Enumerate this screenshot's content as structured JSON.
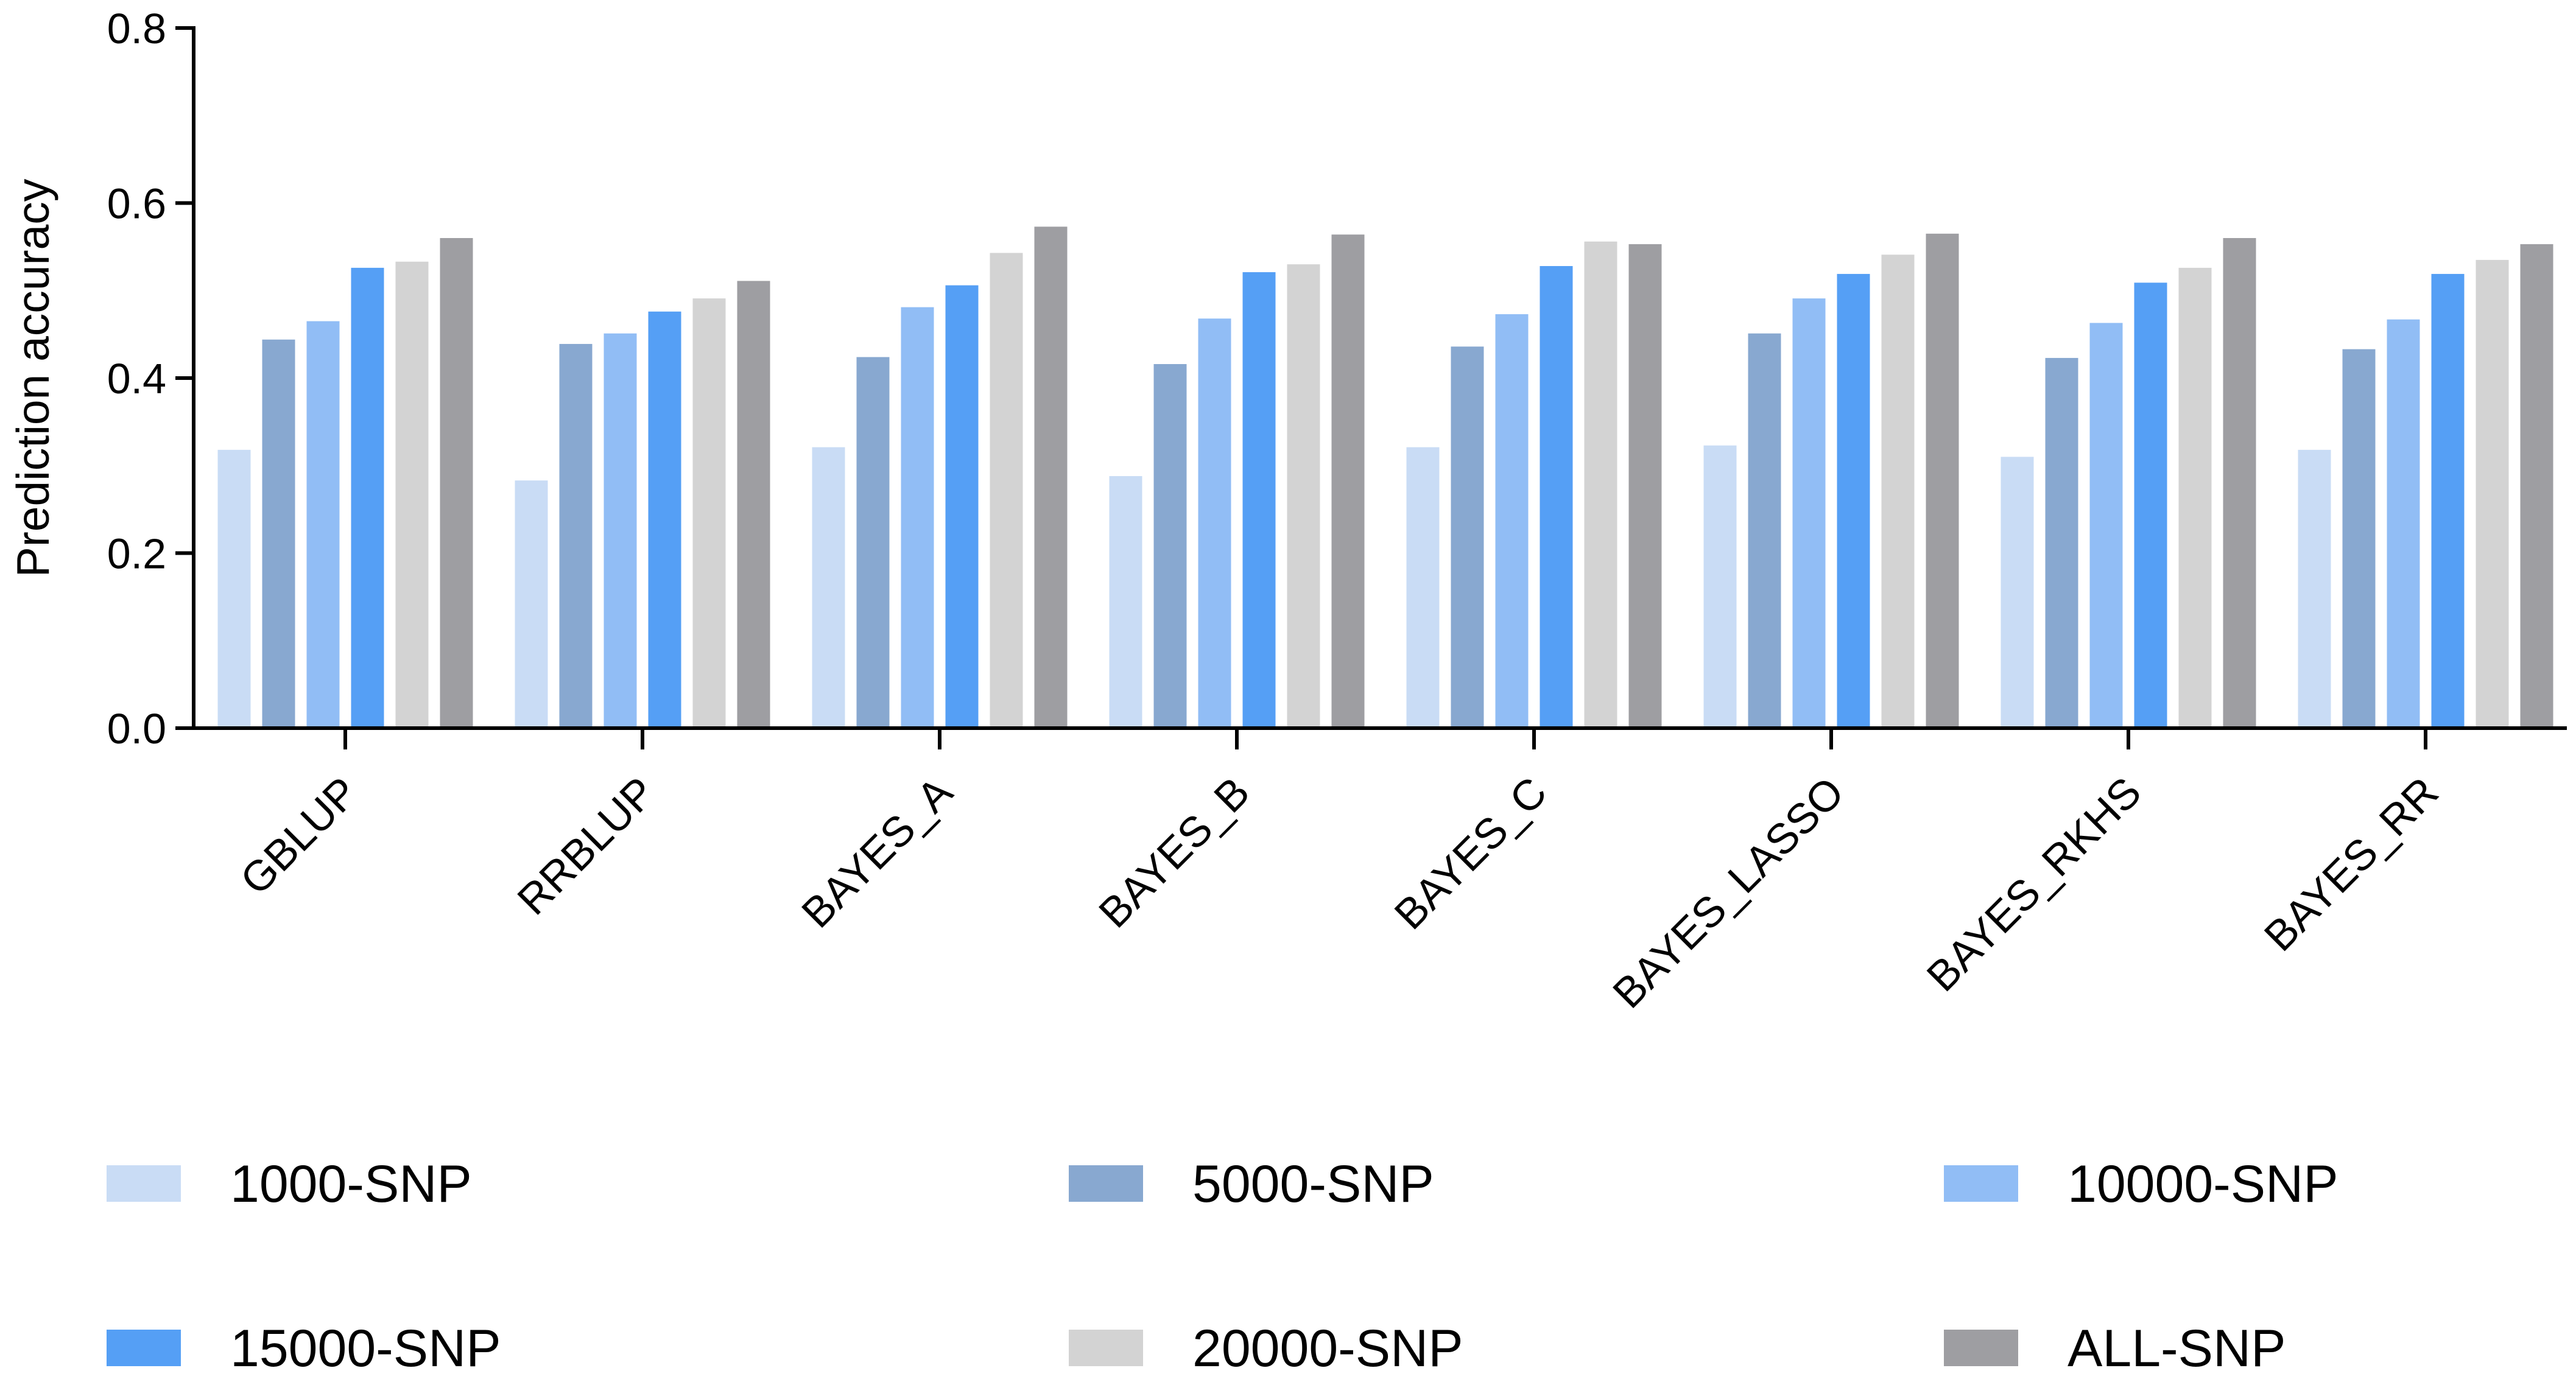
{
  "chart_data": {
    "type": "bar",
    "y_label": "Prediction accuracy",
    "categories": [
      "GBLUP",
      "RRBLUP",
      "BAYES_A",
      "BAYES_B",
      "BAYES_C",
      "BAYES_LASSO",
      "BAYES_RKHS",
      "BAYES_RR"
    ],
    "series": [
      {
        "name": "1000-SNP",
        "color": "#c9dcf5",
        "values": [
          0.318,
          0.283,
          0.321,
          0.288,
          0.321,
          0.323,
          0.31,
          0.318
        ]
      },
      {
        "name": "5000-SNP",
        "color": "#88a8d0",
        "values": [
          0.444,
          0.439,
          0.424,
          0.416,
          0.436,
          0.451,
          0.423,
          0.433
        ]
      },
      {
        "name": "10000-SNP",
        "color": "#91bdf5",
        "values": [
          0.465,
          0.451,
          0.481,
          0.468,
          0.473,
          0.491,
          0.463,
          0.467
        ]
      },
      {
        "name": "15000-SNP",
        "color": "#559ff5",
        "values": [
          0.526,
          0.476,
          0.506,
          0.521,
          0.528,
          0.519,
          0.509,
          0.519
        ]
      },
      {
        "name": "20000-SNP",
        "color": "#d3d3d3",
        "values": [
          0.533,
          0.491,
          0.543,
          0.53,
          0.556,
          0.541,
          0.526,
          0.535
        ]
      },
      {
        "name": "ALL-SNP",
        "color": "#9e9ea2",
        "values": [
          0.56,
          0.511,
          0.573,
          0.564,
          0.553,
          0.565,
          0.56,
          0.553
        ]
      }
    ],
    "ylim": [
      0,
      0.8
    ],
    "yticks": [
      {
        "value": 0,
        "label": "0.0"
      },
      0.2,
      0.4,
      0.6,
      0.8
    ],
    "legend": "bottom"
  }
}
